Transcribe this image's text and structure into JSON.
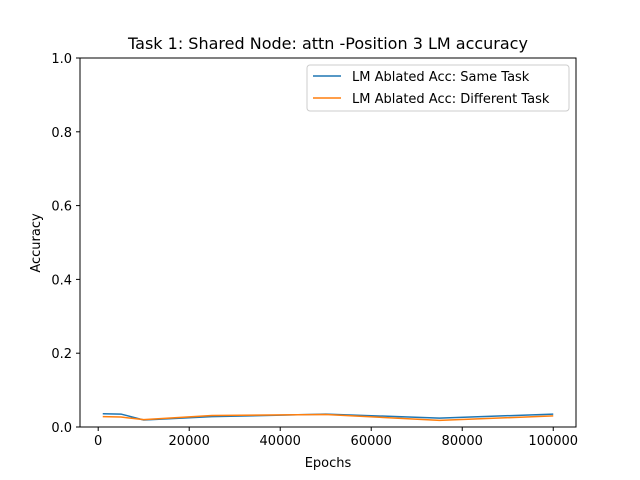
{
  "chart_data": {
    "type": "line",
    "title": "Task 1: Shared Node: attn -Position 3 LM accuracy",
    "xlabel": "Epochs",
    "ylabel": "Accuracy",
    "xlim": [
      -4000,
      105000
    ],
    "ylim": [
      0,
      1.0
    ],
    "xticks": [
      0,
      20000,
      40000,
      60000,
      80000,
      100000
    ],
    "xtick_labels": [
      "0",
      "20000",
      "40000",
      "60000",
      "80000",
      "100000"
    ],
    "yticks": [
      0.0,
      0.2,
      0.4,
      0.6,
      0.8,
      1.0
    ],
    "ytick_labels": [
      "0.0",
      "0.2",
      "0.4",
      "0.6",
      "0.8",
      "1.0"
    ],
    "legend_position": "top-right",
    "series": [
      {
        "name": "LM Ablated Acc: Same Task",
        "color": "#1f77b4",
        "x": [
          1000,
          5000,
          10000,
          25000,
          50000,
          75000,
          100000
        ],
        "y": [
          0.036,
          0.035,
          0.019,
          0.028,
          0.035,
          0.024,
          0.035
        ]
      },
      {
        "name": "LM Ablated Acc: Different Task",
        "color": "#ff7f0e",
        "x": [
          1000,
          5000,
          10000,
          25000,
          50000,
          75000,
          100000
        ],
        "y": [
          0.028,
          0.027,
          0.02,
          0.031,
          0.034,
          0.018,
          0.03
        ]
      }
    ]
  }
}
